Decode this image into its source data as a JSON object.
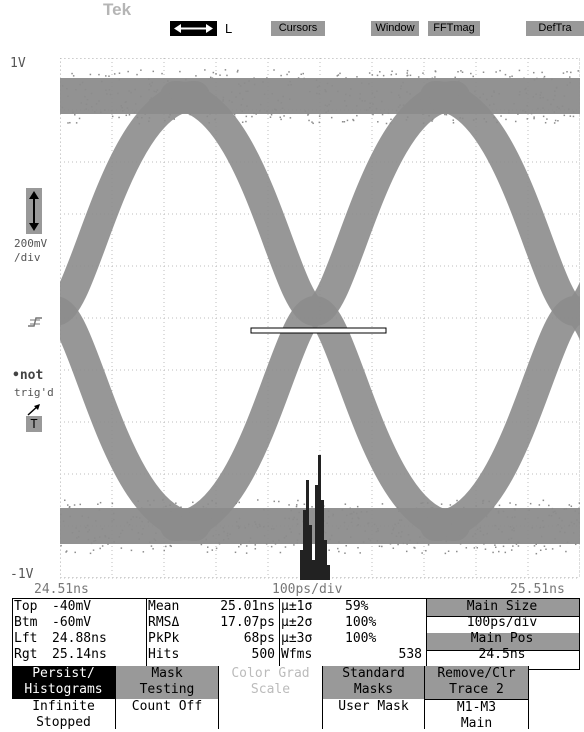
{
  "brand": "Tek",
  "toolbar": {
    "cursor_mode": "L",
    "buttons": [
      "Cursors",
      "Window",
      "FFTmag",
      "DefTra"
    ]
  },
  "axis": {
    "y_top": "1V",
    "y_bottom": "-1V",
    "scale_v": "200mV",
    "scale_v_unit": "/div",
    "x_left": "24.51ns",
    "x_center": "100ps/div",
    "x_right": "25.51ns"
  },
  "trigger": {
    "status1": "not",
    "status2": "trig'd",
    "T_label": "T"
  },
  "measurements": {
    "col1": [
      {
        "label": "Top",
        "value": "-40mV"
      },
      {
        "label": "Btm",
        "value": "-60mV"
      },
      {
        "label": "Lft",
        "value": "24.88ns"
      },
      {
        "label": "Rgt",
        "value": "25.14ns"
      }
    ],
    "col2": [
      {
        "label": "Mean",
        "value": "25.01ns"
      },
      {
        "label": "RMSΔ",
        "value": "17.07ps"
      },
      {
        "label": "PkPk",
        "value": "68ps"
      },
      {
        "label": "Hits",
        "value": "500"
      }
    ],
    "col3": [
      {
        "label": "µ±1σ",
        "value": "59%"
      },
      {
        "label": "µ±2σ",
        "value": "100%"
      },
      {
        "label": "µ±3σ",
        "value": "100%"
      },
      {
        "label": "Wfms",
        "value": "538"
      }
    ],
    "main": {
      "size_label": "Main Size",
      "size_value": "100ps/div",
      "pos_label": "Main Pos",
      "pos_value": "24.5ns"
    }
  },
  "menu": [
    {
      "top": "Persist/",
      "mid": "Histograms",
      "bot1": "Infinite",
      "bot2": "Stopped"
    },
    {
      "top": "Mask",
      "mid": "Testing",
      "bot1": "Count Off",
      "bot2": ""
    },
    {
      "top": "Color Grad",
      "mid": "Scale",
      "bot1": "",
      "bot2": ""
    },
    {
      "top": "Standard",
      "mid": "Masks",
      "bot1": "User Mask",
      "bot2": ""
    },
    {
      "top": "Remove/Clr",
      "mid": "Trace 2",
      "bot1": "M1-M3",
      "bot2": "Main"
    }
  ],
  "colors": {
    "trace": "#8c8c8c",
    "grid": "#bdbdbd",
    "button_bg": "#999999",
    "histogram": "#222222"
  }
}
